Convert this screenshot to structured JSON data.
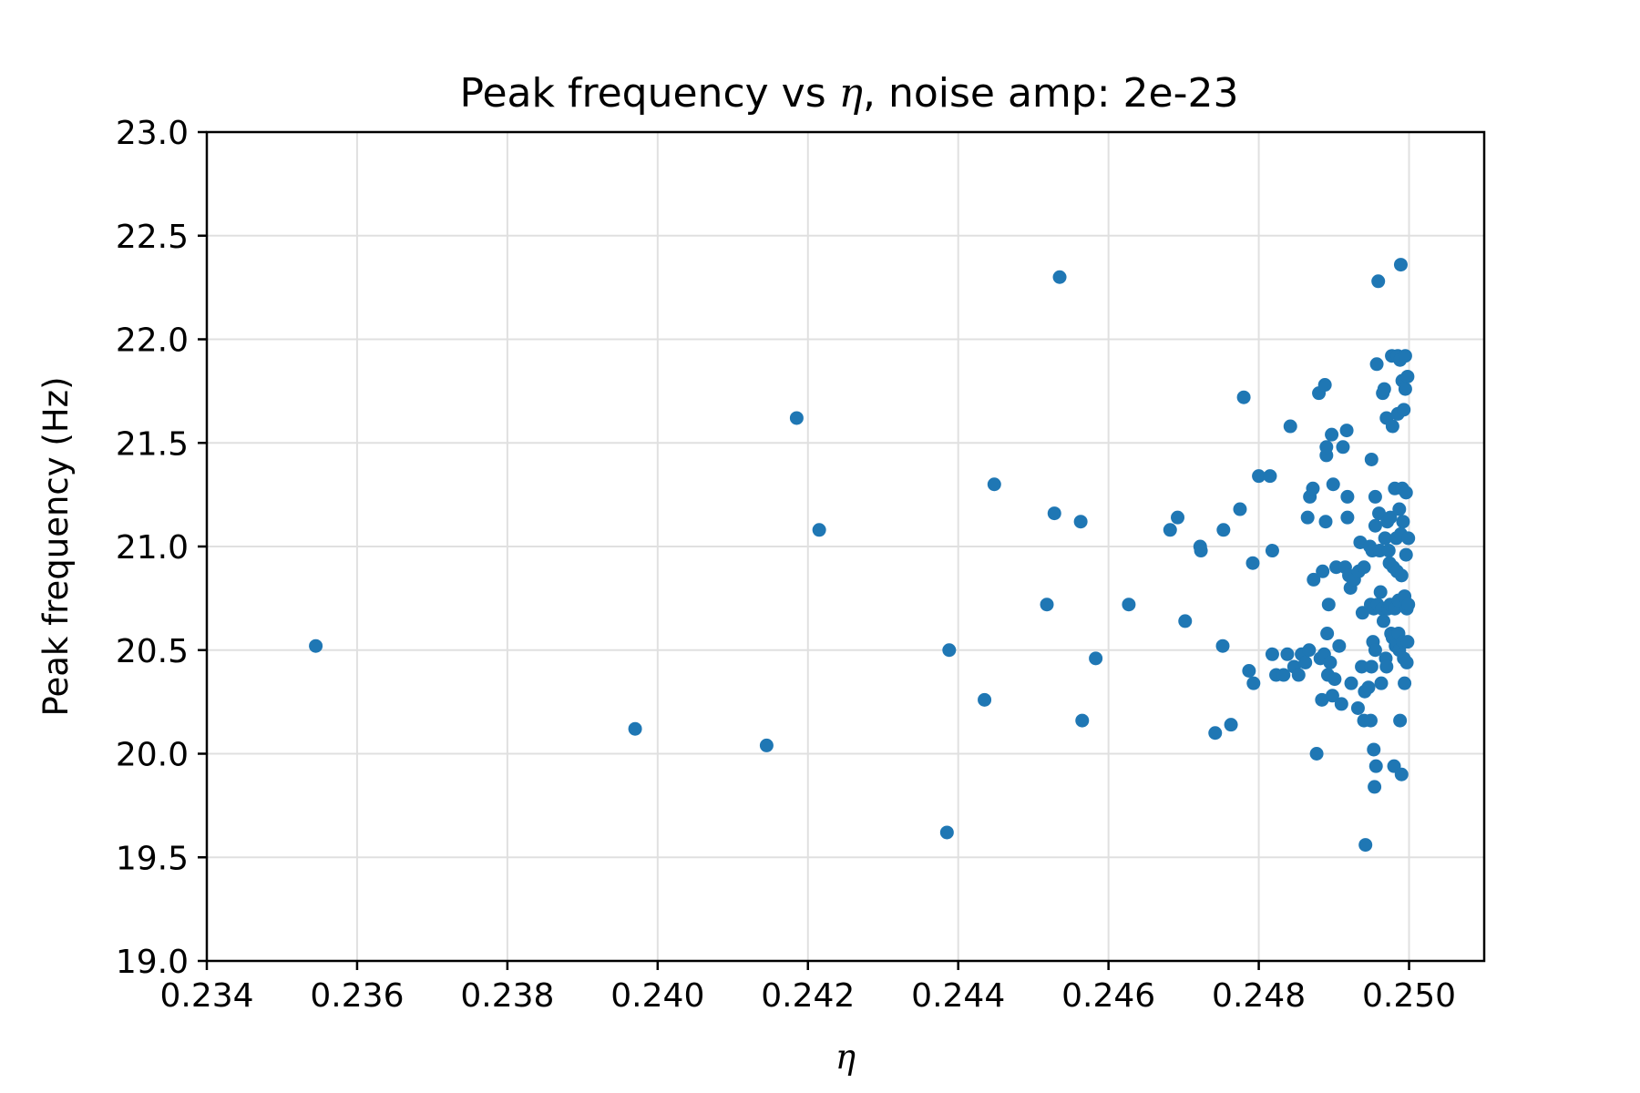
{
  "chart_data": {
    "type": "scatter",
    "title_prefix": "Peak frequency vs ",
    "title_symbol": "η",
    "title_suffix": ", noise amp: 2e-23",
    "xlabel": "η",
    "ylabel": "Peak frequency (Hz)",
    "xlim": [
      0.234,
      0.251
    ],
    "ylim": [
      19.0,
      23.0
    ],
    "xticks": [
      0.234,
      0.236,
      0.238,
      0.24,
      0.242,
      0.244,
      0.246,
      0.248,
      0.25
    ],
    "xtick_labels": [
      "0.234",
      "0.236",
      "0.238",
      "0.240",
      "0.242",
      "0.244",
      "0.246",
      "0.248",
      "0.250"
    ],
    "yticks": [
      19.0,
      19.5,
      20.0,
      20.5,
      21.0,
      21.5,
      22.0,
      22.5,
      23.0
    ],
    "ytick_labels": [
      "19.0",
      "19.5",
      "20.0",
      "20.5",
      "21.0",
      "21.5",
      "22.0",
      "22.5",
      "23.0"
    ],
    "grid": true,
    "marker_color": "#1f77b4",
    "points": [
      [
        0.23545,
        20.52
      ],
      [
        0.2397,
        20.12
      ],
      [
        0.24145,
        20.04
      ],
      [
        0.24185,
        21.62
      ],
      [
        0.24215,
        21.08
      ],
      [
        0.24385,
        19.62
      ],
      [
        0.24388,
        20.5
      ],
      [
        0.24435,
        20.26
      ],
      [
        0.24448,
        21.3
      ],
      [
        0.24518,
        20.72
      ],
      [
        0.24528,
        21.16
      ],
      [
        0.24535,
        22.3
      ],
      [
        0.24563,
        21.12
      ],
      [
        0.24565,
        20.16
      ],
      [
        0.24583,
        20.46
      ],
      [
        0.24627,
        20.72
      ],
      [
        0.24682,
        21.08
      ],
      [
        0.24692,
        21.14
      ],
      [
        0.24702,
        20.64
      ],
      [
        0.24722,
        21.0
      ],
      [
        0.24723,
        20.98
      ],
      [
        0.24742,
        20.1
      ],
      [
        0.24752,
        20.52
      ],
      [
        0.24753,
        21.08
      ],
      [
        0.24763,
        20.14
      ],
      [
        0.24775,
        21.18
      ],
      [
        0.2478,
        21.72
      ],
      [
        0.24787,
        20.4
      ],
      [
        0.24792,
        20.92
      ],
      [
        0.24793,
        20.34
      ],
      [
        0.248,
        21.34
      ],
      [
        0.24815,
        21.34
      ],
      [
        0.24818,
        20.98
      ],
      [
        0.24818,
        20.48
      ],
      [
        0.24823,
        20.38
      ],
      [
        0.24833,
        20.38
      ],
      [
        0.24838,
        20.48
      ],
      [
        0.24842,
        21.58
      ],
      [
        0.24847,
        20.42
      ],
      [
        0.24853,
        20.38
      ],
      [
        0.24857,
        20.48
      ],
      [
        0.24862,
        20.44
      ],
      [
        0.24865,
        21.14
      ],
      [
        0.24867,
        20.5
      ],
      [
        0.24868,
        21.24
      ],
      [
        0.24872,
        21.28
      ],
      [
        0.24873,
        20.84
      ],
      [
        0.24877,
        20.0
      ],
      [
        0.2488,
        21.74
      ],
      [
        0.24882,
        20.46
      ],
      [
        0.24884,
        20.26
      ],
      [
        0.24885,
        20.88
      ],
      [
        0.24887,
        20.48
      ],
      [
        0.24888,
        21.78
      ],
      [
        0.24889,
        21.12
      ],
      [
        0.2489,
        21.44
      ],
      [
        0.2489,
        21.48
      ],
      [
        0.24891,
        20.58
      ],
      [
        0.24892,
        20.38
      ],
      [
        0.24893,
        20.72
      ],
      [
        0.24895,
        20.44
      ],
      [
        0.24897,
        21.54
      ],
      [
        0.24898,
        20.28
      ],
      [
        0.24899,
        21.3
      ],
      [
        0.24901,
        20.36
      ],
      [
        0.24903,
        20.9
      ],
      [
        0.24907,
        20.52
      ],
      [
        0.2491,
        20.24
      ],
      [
        0.24912,
        21.48
      ],
      [
        0.24915,
        20.9
      ],
      [
        0.24917,
        21.56
      ],
      [
        0.24918,
        21.14
      ],
      [
        0.24918,
        21.24
      ],
      [
        0.2492,
        20.86
      ],
      [
        0.24922,
        20.8
      ],
      [
        0.24923,
        20.34
      ],
      [
        0.24927,
        20.84
      ],
      [
        0.24932,
        20.22
      ],
      [
        0.24933,
        20.88
      ],
      [
        0.24935,
        21.02
      ],
      [
        0.24937,
        20.42
      ],
      [
        0.24938,
        20.68
      ],
      [
        0.2494,
        20.9
      ],
      [
        0.2494,
        20.16
      ],
      [
        0.24941,
        20.3
      ],
      [
        0.24942,
        19.56
      ],
      [
        0.24946,
        20.32
      ],
      [
        0.24948,
        21.0
      ],
      [
        0.24949,
        20.16
      ],
      [
        0.24949,
        20.72
      ],
      [
        0.2495,
        21.42
      ],
      [
        0.2495,
        20.42
      ],
      [
        0.24951,
        20.98
      ],
      [
        0.24952,
        20.54
      ],
      [
        0.24953,
        20.7
      ],
      [
        0.24953,
        20.02
      ],
      [
        0.24954,
        19.84
      ],
      [
        0.24955,
        21.1
      ],
      [
        0.24955,
        21.24
      ],
      [
        0.24955,
        20.5
      ],
      [
        0.24956,
        19.94
      ],
      [
        0.24957,
        21.88
      ],
      [
        0.24958,
        20.72
      ],
      [
        0.24959,
        22.28
      ],
      [
        0.2496,
        21.16
      ],
      [
        0.24961,
        20.98
      ],
      [
        0.24962,
        20.78
      ],
      [
        0.24963,
        20.34
      ],
      [
        0.24964,
        20.7
      ],
      [
        0.24965,
        21.74
      ],
      [
        0.24966,
        20.64
      ],
      [
        0.24967,
        21.76
      ],
      [
        0.24968,
        21.04
      ],
      [
        0.24969,
        20.46
      ],
      [
        0.2497,
        21.62
      ],
      [
        0.2497,
        20.42
      ],
      [
        0.24971,
        21.12
      ],
      [
        0.24972,
        20.7
      ],
      [
        0.24973,
        20.98
      ],
      [
        0.24974,
        20.92
      ],
      [
        0.24975,
        20.72
      ],
      [
        0.24975,
        21.14
      ],
      [
        0.24976,
        20.58
      ],
      [
        0.24977,
        21.92
      ],
      [
        0.24978,
        20.56
      ],
      [
        0.24978,
        21.58
      ],
      [
        0.24979,
        20.9
      ],
      [
        0.2498,
        19.94
      ],
      [
        0.24981,
        21.28
      ],
      [
        0.24981,
        20.7
      ],
      [
        0.24982,
        20.52
      ],
      [
        0.24983,
        21.04
      ],
      [
        0.24984,
        20.88
      ],
      [
        0.24985,
        21.92
      ],
      [
        0.24985,
        21.64
      ],
      [
        0.24986,
        20.74
      ],
      [
        0.24986,
        20.58
      ],
      [
        0.24987,
        21.18
      ],
      [
        0.24987,
        20.5
      ],
      [
        0.24988,
        21.9
      ],
      [
        0.24988,
        20.16
      ],
      [
        0.24989,
        22.36
      ],
      [
        0.24989,
        21.06
      ],
      [
        0.2499,
        20.86
      ],
      [
        0.2499,
        19.9
      ],
      [
        0.24991,
        21.8
      ],
      [
        0.24991,
        21.28
      ],
      [
        0.24992,
        20.54
      ],
      [
        0.24992,
        21.12
      ],
      [
        0.24993,
        20.46
      ],
      [
        0.24993,
        21.66
      ],
      [
        0.24994,
        20.76
      ],
      [
        0.24994,
        20.34
      ],
      [
        0.24995,
        21.92
      ],
      [
        0.24995,
        21.76
      ],
      [
        0.24996,
        20.96
      ],
      [
        0.24996,
        21.26
      ],
      [
        0.24997,
        20.7
      ],
      [
        0.24997,
        20.44
      ],
      [
        0.24998,
        21.82
      ],
      [
        0.24998,
        20.54
      ],
      [
        0.24999,
        21.04
      ],
      [
        0.24999,
        20.72
      ]
    ]
  }
}
